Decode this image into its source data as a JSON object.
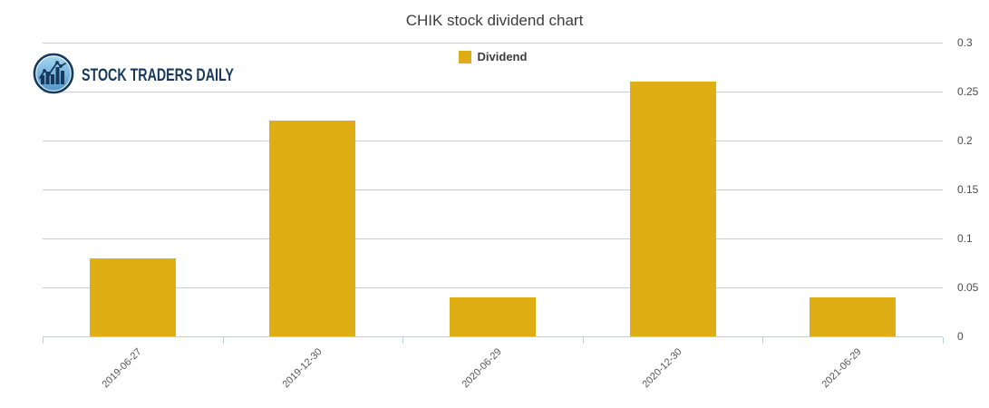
{
  "page": {
    "background": "#FFFFFF"
  },
  "title": "CHIK stock dividend chart",
  "logo": {
    "text": "STOCK TRADERS DAILY",
    "icon": "bar-line-chart-circle-icon"
  },
  "legend": {
    "label": "Dividend"
  },
  "chart_data": {
    "type": "bar",
    "title": "CHIK stock dividend chart",
    "categories": [
      "2019-06-27",
      "2019-12-30",
      "2020-06-29",
      "2020-12-30",
      "2021-06-29"
    ],
    "series": [
      {
        "name": "Dividend",
        "color": "#DFAE14",
        "values": [
          0.08,
          0.22,
          0.04,
          0.26,
          0.04
        ]
      }
    ],
    "xlabel": "",
    "ylabel": "",
    "ylim": [
      0,
      0.3
    ],
    "ytick_step": 0.05,
    "ytick_labels": [
      "0",
      "0.05",
      "0.1",
      "0.15",
      "0.2",
      "0.25",
      "0.3"
    ],
    "grid": "horizontal",
    "legend_position": "top-center",
    "y_axis_side": "right",
    "x_label_rotation": -45
  },
  "colors": {
    "bar": "#DFAE14",
    "gridline": "#CDCDCD",
    "axis_line": "#BFD0DA",
    "title_text": "#3C3C3C",
    "axis_text": "#4D4D4D",
    "legend_text": "#3C3C3C",
    "logo_navy": "#16395C",
    "logo_blue_light": "#A8D8F2",
    "logo_blue_dark": "#4E95CB"
  }
}
